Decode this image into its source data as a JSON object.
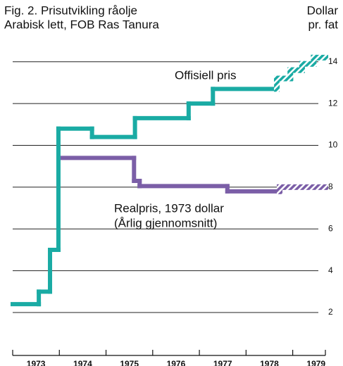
{
  "chart_data": {
    "type": "step",
    "title": [
      "Fig. 2. Prisutvikling råolje",
      "Arabisk lett, FOB Ras Tanura"
    ],
    "y_label": [
      "Dollar",
      "pr. fat"
    ],
    "xlim": [
      1973,
      1979.7
    ],
    "xticks": [
      1973,
      1974,
      1975,
      1976,
      1977,
      1978,
      1979
    ],
    "ylim": [
      1.8,
      14.8
    ],
    "yticks": [
      2,
      4,
      6,
      8,
      10,
      12,
      14
    ],
    "grid": true,
    "series": [
      {
        "name": "Offisiell pris",
        "color": "#1aaba4",
        "x": [
          1973,
          1973.56,
          1973.8,
          1973.98,
          1974.7,
          1975.62,
          1976.77,
          1977.29
        ],
        "x_end": [
          1973.56,
          1973.8,
          1973.98,
          1974.7,
          1975.62,
          1976.77,
          1977.29,
          1978.66
        ],
        "values": [
          2.4,
          3.0,
          5.0,
          10.8,
          10.4,
          11.3,
          12.0,
          12.7
        ]
      },
      {
        "color": "#1aaba4",
        "hatched": true,
        "x": [
          1978.66,
          1978.95,
          1979.2,
          1979.45
        ],
        "x_end": [
          1978.95,
          1979.2,
          1979.45,
          1979.7
        ],
        "values": [
          13.2,
          13.6,
          13.9,
          14.2
        ]
      },
      {
        "name": [
          "Realpris, 1973 dollar",
          "(Årlig gjennomsnitt)"
        ],
        "color": "#7b5ea7",
        "x": [
          1974.07,
          1975.6,
          1975.72,
          1977.6
        ],
        "x_end": [
          1975.6,
          1975.72,
          1977.6,
          1978.72
        ],
        "values": [
          9.4,
          8.3,
          8.05,
          7.8
        ]
      },
      {
        "color": "#7b5ea7",
        "hatched": true,
        "x": [
          1978.72
        ],
        "x_end": [
          1979.7
        ],
        "values": [
          8.0
        ]
      }
    ]
  }
}
